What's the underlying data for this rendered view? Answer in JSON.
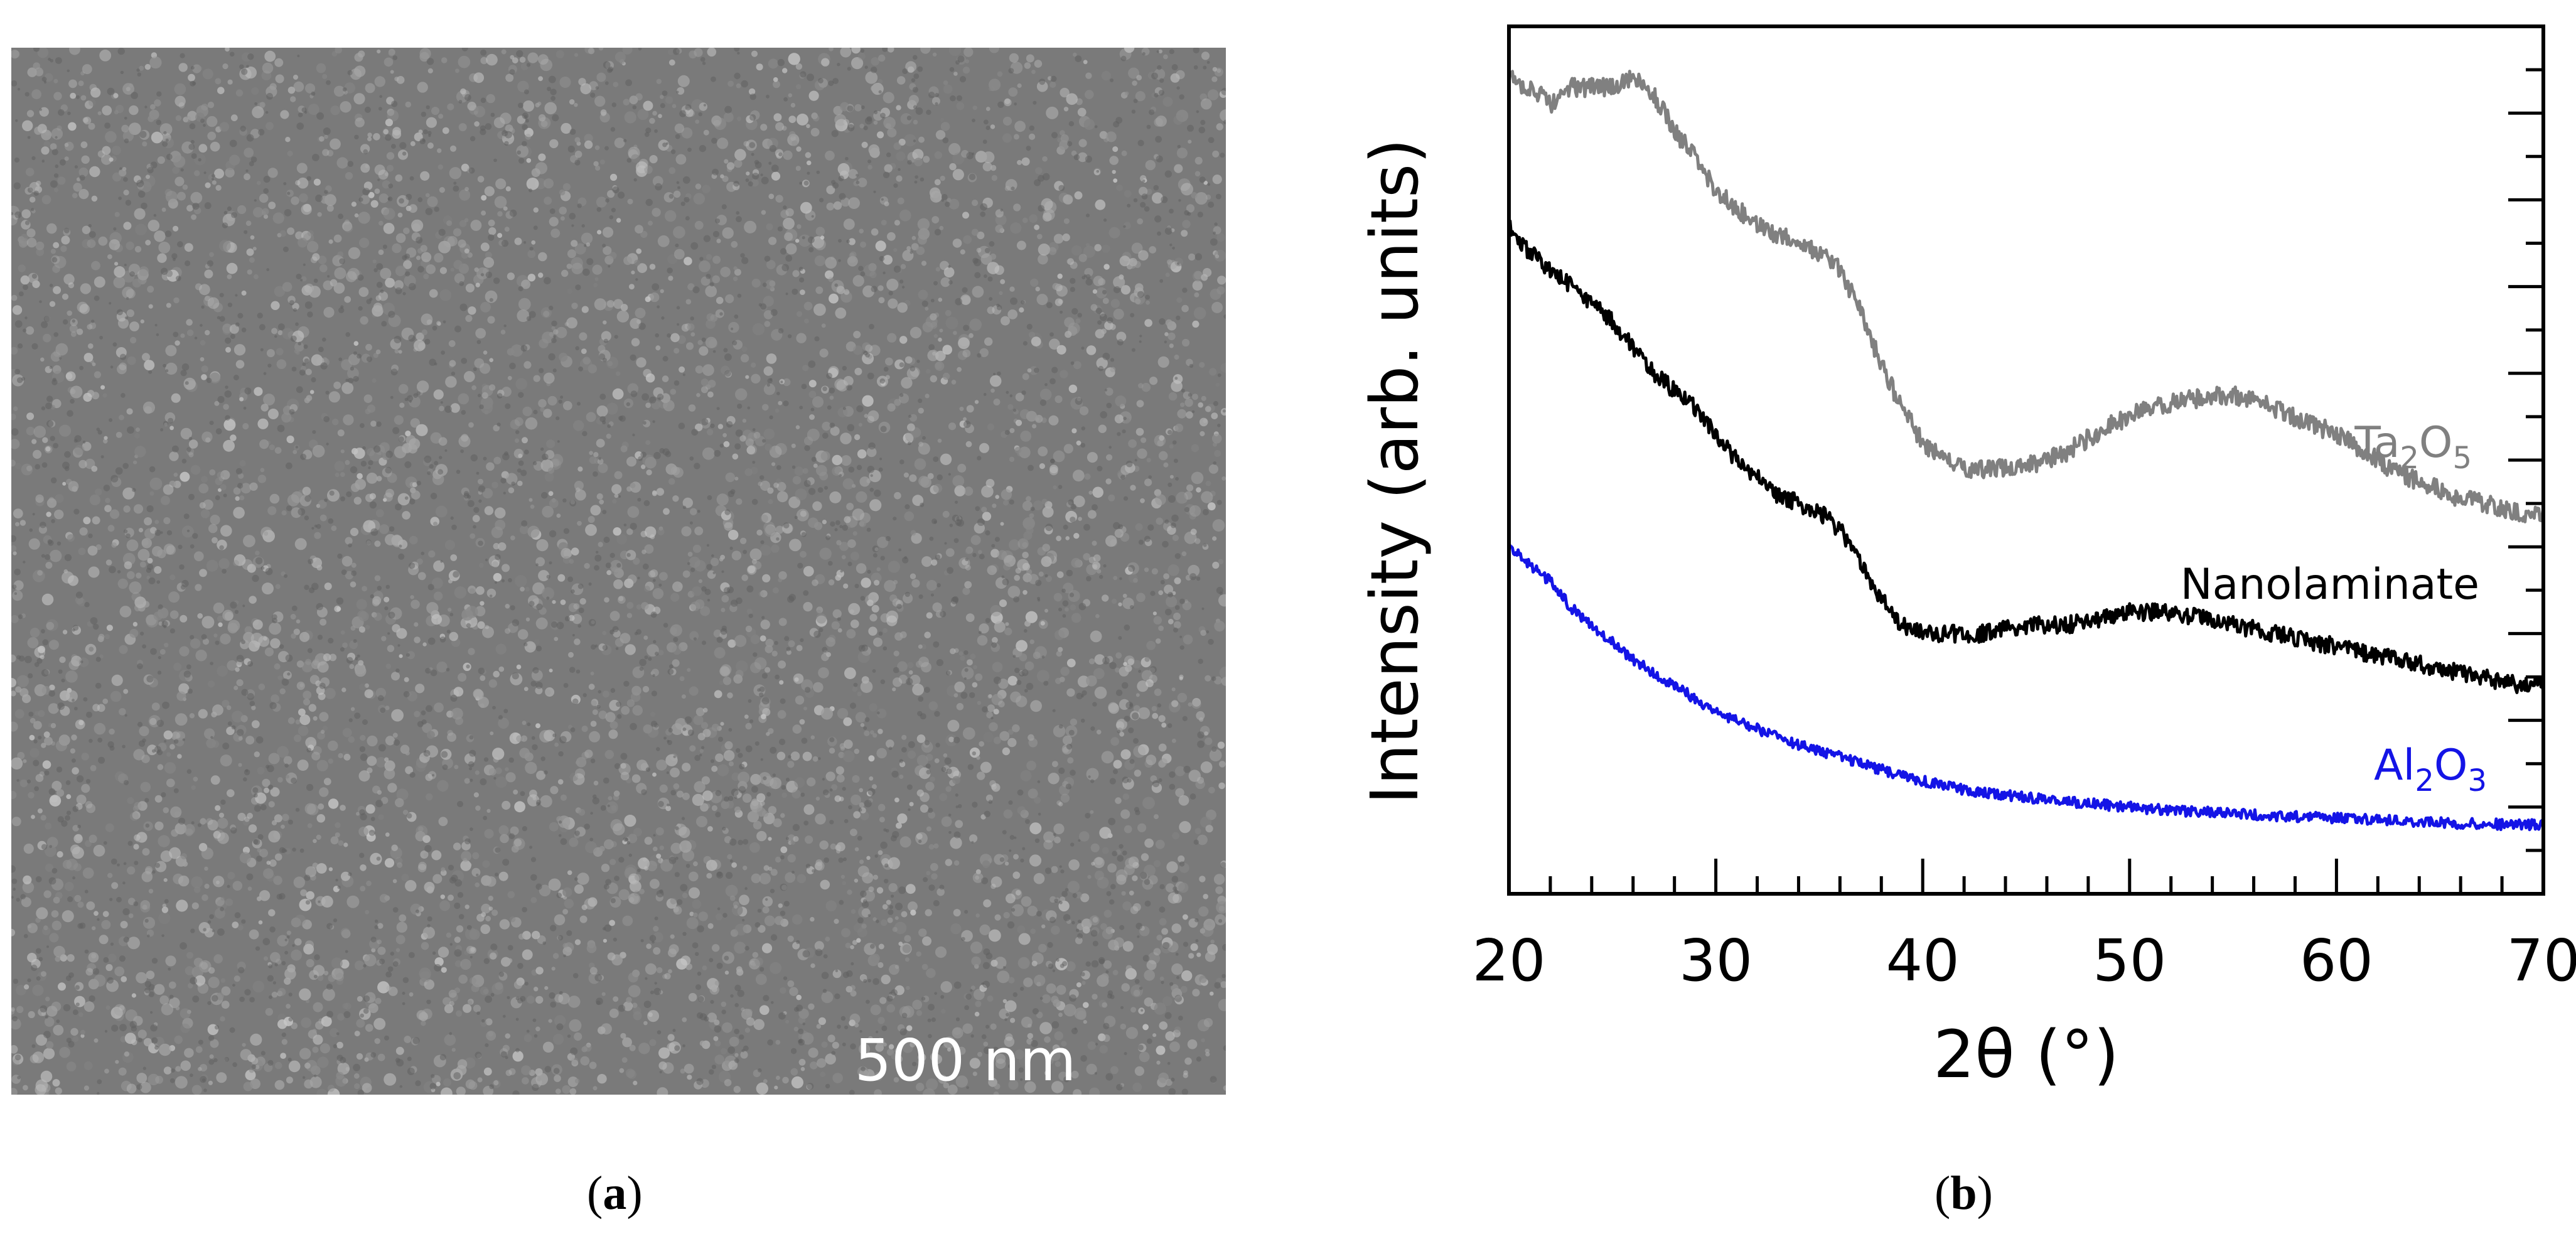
{
  "panel_a": {
    "scalebar_label": "500 nm",
    "caption_open": "(",
    "caption_letter": "a",
    "caption_close": ")"
  },
  "panel_b": {
    "caption_open": "(",
    "caption_letter": "b",
    "caption_close": ")"
  },
  "chart_data": {
    "type": "line",
    "xlabel": "2θ (°)",
    "ylabel": "Intensity (arb. units)",
    "xlim": [
      20,
      70
    ],
    "ylim": [
      0,
      100
    ],
    "xticks": [
      20,
      30,
      40,
      50,
      60,
      70
    ],
    "y_tick_labels": [],
    "grid": false,
    "series": [
      {
        "name": "Ta2O5",
        "label_main": "Ta",
        "label_sub1": "2",
        "label_mid": "O",
        "label_sub2": "5",
        "color": "#808080",
        "x": [
          20,
          21,
          22,
          23,
          24,
          25,
          26,
          27,
          28,
          29,
          30,
          31,
          32,
          33,
          34,
          35,
          36,
          37,
          38,
          39,
          40,
          41,
          42,
          43,
          44,
          45,
          46,
          47,
          48,
          49,
          50,
          51,
          52,
          53,
          54,
          55,
          56,
          57,
          58,
          59,
          60,
          61,
          62,
          63,
          64,
          65,
          66,
          67,
          68,
          69,
          70
        ],
        "y": [
          94,
          93,
          91,
          93,
          93,
          93,
          94,
          92,
          88,
          85,
          81,
          79,
          77,
          76,
          75,
          74,
          72,
          67,
          61,
          56,
          52,
          50,
          49,
          49,
          49,
          49.5,
          50,
          51,
          52.5,
          54,
          55,
          56,
          56.5,
          57,
          57.5,
          57.5,
          57,
          56,
          55,
          54,
          53,
          51.5,
          50,
          48.5,
          47.5,
          46.5,
          45.5,
          45,
          44.5,
          44,
          43.5
        ]
      },
      {
        "name": "Nanolaminate",
        "label_main": "Nanolaminate",
        "color": "#000000",
        "x": [
          20,
          21,
          22,
          23,
          24,
          25,
          26,
          27,
          28,
          29,
          30,
          31,
          32,
          33,
          34,
          35,
          36,
          37,
          38,
          39,
          40,
          41,
          42,
          43,
          44,
          45,
          46,
          47,
          48,
          49,
          50,
          51,
          52,
          53,
          54,
          55,
          56,
          57,
          58,
          59,
          60,
          61,
          62,
          63,
          64,
          65,
          66,
          67,
          68,
          69,
          70
        ],
        "y": [
          77,
          74,
          72,
          70,
          68,
          66,
          63,
          60,
          58,
          56,
          53,
          50,
          48,
          46,
          45,
          44,
          42,
          38,
          34,
          31,
          30,
          30,
          30,
          30,
          30.5,
          31,
          31,
          31,
          31.5,
          32,
          32.5,
          32.5,
          32.5,
          32,
          31.5,
          31,
          30.5,
          30,
          29.5,
          29,
          28.5,
          28,
          27.5,
          27,
          26.5,
          26,
          25.5,
          25,
          24.5,
          24,
          24
        ]
      },
      {
        "name": "Al2O3",
        "label_main": "Al",
        "label_sub1": "2",
        "label_mid": "O",
        "label_sub2": "3",
        "color": "#1414e6",
        "x": [
          20,
          21,
          22,
          23,
          24,
          25,
          26,
          27,
          28,
          29,
          30,
          31,
          32,
          33,
          34,
          35,
          36,
          37,
          38,
          39,
          40,
          41,
          42,
          43,
          44,
          45,
          46,
          47,
          48,
          49,
          50,
          51,
          52,
          53,
          54,
          55,
          56,
          57,
          58,
          59,
          60,
          61,
          62,
          63,
          64,
          65,
          66,
          67,
          68,
          69,
          70
        ],
        "y": [
          40,
          38,
          36,
          33,
          31,
          29,
          27,
          25.5,
          24,
          22.5,
          21,
          20,
          19,
          18,
          17.2,
          16.5,
          15.8,
          15,
          14.3,
          13.7,
          13,
          12.5,
          12,
          11.7,
          11.4,
          11.1,
          10.9,
          10.6,
          10.4,
          10.2,
          10,
          9.8,
          9.6,
          9.5,
          9.4,
          9.3,
          9.1,
          9,
          8.9,
          8.8,
          8.7,
          8.6,
          8.5,
          8.4,
          8.3,
          8.2,
          8.1,
          8.1,
          8,
          8,
          7.9
        ]
      }
    ]
  }
}
